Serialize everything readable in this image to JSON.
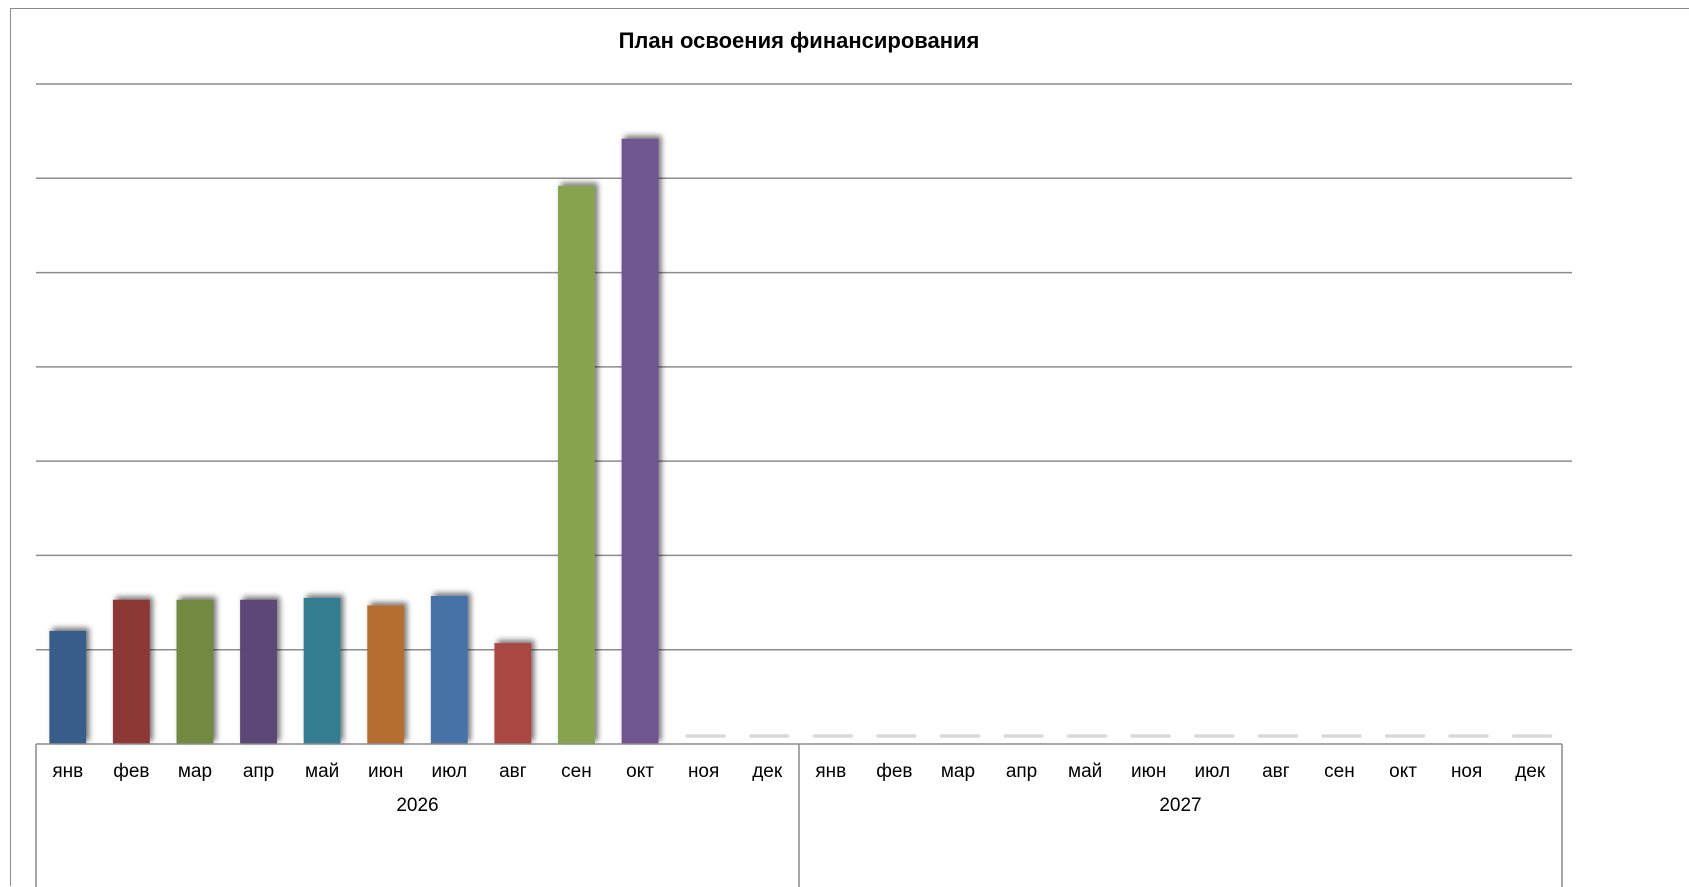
{
  "chart_data": {
    "type": "bar",
    "title": "План освоения финансирования",
    "xlabel": "",
    "ylabel": "",
    "grid": true,
    "legend": "none",
    "ylim": [
      0,
      7
    ],
    "groups": [
      {
        "label": "2026",
        "categories": [
          "янв",
          "фев",
          "мар",
          "апр",
          "май",
          "июн",
          "июл",
          "авг",
          "сен",
          "окт",
          "ноя",
          "дек"
        ],
        "values": [
          1.2,
          1.53,
          1.53,
          1.53,
          1.55,
          1.47,
          1.57,
          1.07,
          5.92,
          6.42,
          0,
          0
        ]
      },
      {
        "label": "2027",
        "categories": [
          "янв",
          "фев",
          "мар",
          "апр",
          "май",
          "июн",
          "июл",
          "авг",
          "сен",
          "окт",
          "ноя",
          "дек"
        ],
        "values": [
          0,
          0,
          0,
          0,
          0,
          0,
          0,
          0,
          0,
          0,
          0,
          0
        ]
      }
    ],
    "colors": [
      "#385d8a",
      "#8c3836",
      "#71893f",
      "#5c4776",
      "#357d91",
      "#b66d31",
      "#4672a8",
      "#a94643",
      "#87a34d",
      "#6f5790",
      "#d9d9d9",
      "#d9d9d9"
    ]
  }
}
